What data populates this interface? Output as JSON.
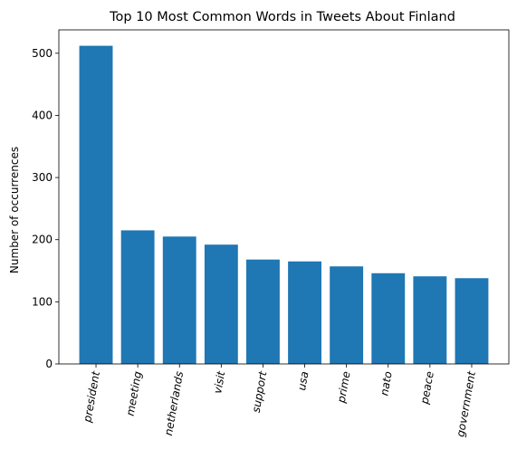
{
  "chart_data": {
    "type": "bar",
    "title": "Top 10 Most Common Words in Tweets About Finland",
    "xlabel": "",
    "ylabel": "Number of occurrences",
    "categories": [
      "president",
      "meeting",
      "netherlands",
      "visit",
      "support",
      "usa",
      "prime",
      "nato",
      "peace",
      "government"
    ],
    "values": [
      512,
      215,
      205,
      192,
      168,
      165,
      157,
      146,
      141,
      138
    ],
    "ylim": [
      0,
      537.6
    ],
    "yticks": [
      0,
      100,
      200,
      300,
      400,
      500
    ],
    "grid": false,
    "legend": "none",
    "bar_color": "#1f77b4"
  }
}
